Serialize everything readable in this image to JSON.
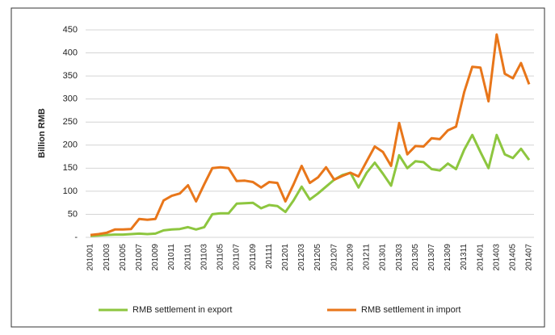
{
  "chart_data": {
    "type": "line",
    "y_label": "Billion RMB",
    "categories": [
      "201001",
      null,
      "201003",
      null,
      "201005",
      null,
      "201007",
      null,
      "201009",
      null,
      "201011",
      null,
      "201101",
      null,
      "201103",
      null,
      "201105",
      null,
      "201107",
      null,
      "201109",
      null,
      "201111",
      null,
      "201201",
      null,
      "201203",
      null,
      "201205",
      null,
      "201207",
      null,
      "201209",
      null,
      "201211",
      null,
      "201301",
      null,
      "201303",
      null,
      "201305",
      null,
      "201307",
      null,
      "201309",
      null,
      "201311",
      null,
      "201401",
      null,
      "201403",
      null,
      "201405",
      null,
      "201407"
    ],
    "series": [
      {
        "name": "RMB settlement in export",
        "color": "#8dc63f",
        "values": [
          3,
          4,
          5,
          6,
          6,
          7,
          8,
          7,
          8,
          15,
          17,
          18,
          22,
          17,
          22,
          50,
          52,
          52,
          73,
          74,
          75,
          63,
          70,
          68,
          55,
          80,
          110,
          82,
          95,
          110,
          125,
          135,
          140,
          108,
          140,
          162,
          138,
          112,
          178,
          150,
          165,
          163,
          148,
          145,
          160,
          148,
          190,
          222,
          185,
          150,
          222,
          180,
          172,
          192,
          168
        ]
      },
      {
        "name": "RMB settlement in import",
        "color": "#e8761a",
        "values": [
          5,
          7,
          10,
          17,
          17,
          18,
          40,
          38,
          40,
          80,
          90,
          95,
          113,
          78,
          115,
          150,
          152,
          150,
          122,
          123,
          120,
          108,
          120,
          118,
          78,
          115,
          155,
          118,
          130,
          152,
          125,
          133,
          140,
          132,
          165,
          197,
          185,
          155,
          248,
          180,
          198,
          197,
          215,
          213,
          232,
          240,
          315,
          370,
          368,
          295,
          440,
          355,
          345,
          378,
          332
        ]
      }
    ],
    "ylim": [
      0,
      450
    ],
    "yticks": [
      {
        "value": 0,
        "label": "-"
      },
      50,
      100,
      150,
      200,
      250,
      300,
      350,
      400,
      450
    ],
    "grid": true,
    "legend": "bottom"
  }
}
